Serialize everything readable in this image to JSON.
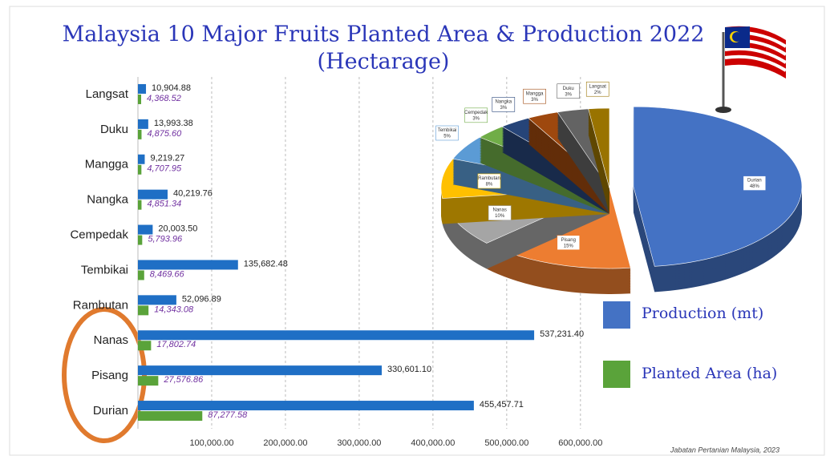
{
  "chart_data": [
    {
      "type": "hbar",
      "title": "Malaysia 10 Major Fruits Planted Area & Production 2022",
      "subtitle": "(Hectarage)",
      "categories": [
        "Langsat",
        "Duku",
        "Mangga",
        "Nangka",
        "Cempedak",
        "Tembikai",
        "Rambutan",
        "Nanas",
        "Pisang",
        "Durian"
      ],
      "series": [
        {
          "name": "Production (mt)",
          "color": "#1f6fc5",
          "values": [
            10904.88,
            13993.38,
            9219.27,
            40219.76,
            20003.5,
            135682.48,
            52096.89,
            537231.4,
            330601.1,
            455457.71
          ],
          "value_labels": [
            "10,904.88",
            "13,993.38",
            "9,219.27",
            "40,219.76",
            "20,003.50",
            "135,682.48",
            "52,096.89",
            "537,231.40",
            "330,601.10",
            "455,457.71"
          ]
        },
        {
          "name": "Planted Area (ha)",
          "color": "#5aa33a",
          "values": [
            4368.52,
            4875.6,
            4707.95,
            4851.34,
            5793.96,
            8469.66,
            14343.08,
            17802.74,
            27576.86,
            87277.58
          ],
          "value_labels": [
            "4,368.52",
            "4,875.60",
            "4,707.95",
            "4,851.34",
            "5,793.96",
            "8,469.66",
            "14,343.08",
            "17,802.74",
            "27,576.86",
            "87,277.58"
          ]
        }
      ],
      "xlim": [
        0,
        660000
      ],
      "xticks": [
        {
          "value": 100000,
          "label": "100,000.00"
        },
        {
          "value": 200000,
          "label": "200,000.00"
        },
        {
          "value": 300000,
          "label": "300,000.00"
        },
        {
          "value": 400000,
          "label": "400,000.00"
        },
        {
          "value": 500000,
          "label": "500,000.00"
        },
        {
          "value": 600000,
          "label": "600,000.00"
        }
      ],
      "grid": true,
      "source": "Jabatan Pertanian Malaysia, 2023"
    },
    {
      "type": "pie3d",
      "categories": [
        "Durian",
        "Pisang",
        "Nanas",
        "Rambutan",
        "Tembikai",
        "Cempedak",
        "Nangka",
        "Mangga",
        "Duku",
        "Langsat"
      ],
      "values": [
        48,
        15,
        10,
        8,
        5,
        3,
        3,
        3,
        3,
        2
      ],
      "value_labels": [
        "48%",
        "15%",
        "10%",
        "8%",
        "5%",
        "3%",
        "3%",
        "3%",
        "3%",
        "2%"
      ],
      "colors": [
        "#4472c4",
        "#ed7d31",
        "#a5a5a5",
        "#ffc000",
        "#5b9bd5",
        "#70ad47",
        "#264478",
        "#9e480e",
        "#636363",
        "#997300"
      ]
    }
  ]
}
